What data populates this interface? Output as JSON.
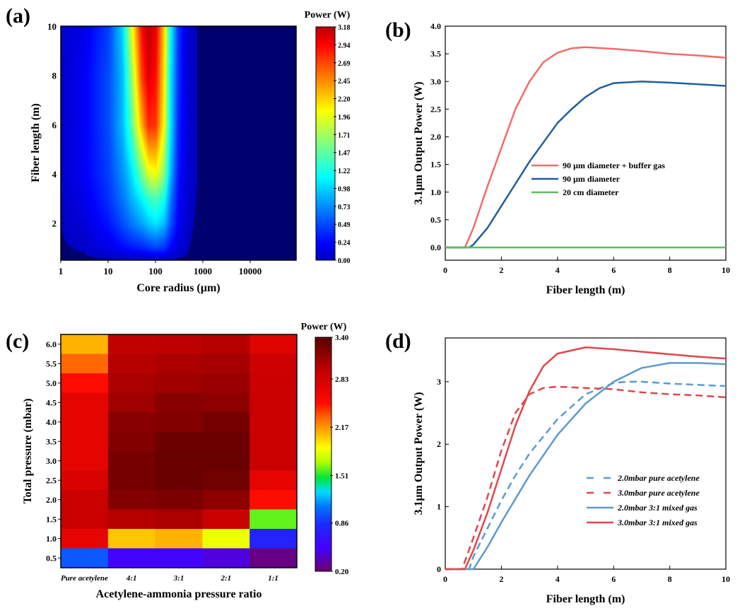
{
  "chart_data": [
    {
      "panel": "(a)",
      "type": "heatmap",
      "xlabel": "Core radius (µm)",
      "ylabel": "Fiber length (m)",
      "xscale": "log",
      "xlim": [
        1,
        93000
      ],
      "ylim": [
        0.5,
        10
      ],
      "xticks": [
        "1",
        "10",
        "100",
        "1000",
        "10000"
      ],
      "yticks": [
        "2",
        "4",
        "6",
        "8",
        "10"
      ],
      "colorbar": {
        "title": "Power (W)",
        "ticks": [
          "0.00",
          "0.24",
          "0.49",
          "0.73",
          "0.98",
          "1.22",
          "1.47",
          "1.71",
          "1.96",
          "2.20",
          "2.45",
          "2.69",
          "2.94",
          "3.18"
        ],
        "range": [
          0,
          3.18
        ],
        "colormap": "jet"
      },
      "x": [
        1,
        3,
        10,
        20,
        30,
        50,
        70,
        100,
        150,
        200,
        300,
        500,
        1000,
        93000
      ],
      "y": [
        0.5,
        1,
        2,
        3,
        4,
        6,
        8,
        10
      ],
      "values": [
        [
          0,
          0,
          0,
          0,
          0,
          0,
          0,
          0,
          0,
          0,
          0,
          0,
          0,
          0
        ],
        [
          0.01,
          0.03,
          0.15,
          0.25,
          0.3,
          0.35,
          0.4,
          0.45,
          0.4,
          0.25,
          0.1,
          0.02,
          0,
          0
        ],
        [
          0.02,
          0.1,
          0.3,
          0.5,
          0.65,
          0.8,
          0.95,
          1.05,
          0.9,
          0.55,
          0.2,
          0.03,
          0,
          0
        ],
        [
          0.03,
          0.15,
          0.4,
          0.65,
          0.85,
          1.1,
          1.3,
          1.4,
          1.2,
          0.7,
          0.25,
          0.04,
          0,
          0
        ],
        [
          0.05,
          0.2,
          0.45,
          0.75,
          1.0,
          1.5,
          1.9,
          2.0,
          1.6,
          0.9,
          0.3,
          0.05,
          0,
          0
        ],
        [
          0.05,
          0.2,
          0.5,
          0.9,
          1.4,
          2.3,
          2.8,
          2.75,
          2.0,
          1.1,
          0.35,
          0.05,
          0,
          0
        ],
        [
          0.05,
          0.2,
          0.5,
          0.9,
          1.6,
          2.7,
          3.05,
          2.9,
          2.1,
          1.1,
          0.4,
          0.05,
          0,
          0
        ],
        [
          0.05,
          0.15,
          0.45,
          1.0,
          1.9,
          2.9,
          3.18,
          3.0,
          2.2,
          1.2,
          0.4,
          0.05,
          0,
          0
        ]
      ]
    },
    {
      "panel": "(b)",
      "type": "line",
      "xlabel": "Fiber length (m)",
      "ylabel": "3.1μm Output Power (W)",
      "xlim": [
        0,
        10
      ],
      "ylim": [
        -0.23,
        4.0
      ],
      "xticks": [
        "0",
        "2",
        "4",
        "6",
        "8",
        "10"
      ],
      "yticks": [
        "0.0",
        "0.5",
        "1.0",
        "1.5",
        "2.0",
        "2.5",
        "3.0",
        "3.5",
        "4.0"
      ],
      "legend": "center-right",
      "series": [
        {
          "name": "90 µm diameter + buffer gas",
          "color": "#f26b6b",
          "dash": false,
          "x": [
            0,
            0.7,
            1,
            1.5,
            2,
            2.5,
            3,
            3.5,
            4,
            4.5,
            5,
            6,
            7,
            8,
            9,
            10
          ],
          "y": [
            0,
            0,
            0.35,
            1.1,
            1.8,
            2.5,
            3.0,
            3.35,
            3.52,
            3.6,
            3.62,
            3.59,
            3.55,
            3.5,
            3.47,
            3.43
          ]
        },
        {
          "name": "90 µm diameter",
          "color": "#1f5f9e",
          "dash": false,
          "x": [
            0,
            0.85,
            1,
            1.5,
            2,
            2.5,
            3,
            3.5,
            4,
            4.5,
            5,
            5.5,
            6,
            7,
            8,
            9,
            10
          ],
          "y": [
            0,
            0,
            0.05,
            0.35,
            0.75,
            1.15,
            1.55,
            1.9,
            2.25,
            2.5,
            2.72,
            2.88,
            2.97,
            3.0,
            2.98,
            2.95,
            2.92
          ]
        },
        {
          "name": "20 cm diameter",
          "color": "#5cbf5c",
          "dash": false,
          "x": [
            0,
            10
          ],
          "y": [
            0,
            0
          ]
        }
      ]
    },
    {
      "panel": "(c)",
      "type": "heatmap",
      "xlabel": "Acetylene-ammonia pressure ratio",
      "ylabel": "Total pressure (mbar)",
      "categories": [
        "Pure acetylene",
        "4:1",
        "3:1",
        "2:1",
        "1:1"
      ],
      "rows": [
        "6.0",
        "5.5",
        "5.0",
        "4.5",
        "4.0",
        "3.5",
        "3.0",
        "2.5",
        "2.0",
        "1.5",
        "1.0",
        "0.5"
      ],
      "colorbar": {
        "title": "Power (W)",
        "ticks": [
          "0.20",
          "0.86",
          "1.51",
          "2.17",
          "2.83",
          "3.40"
        ],
        "range": [
          0.2,
          3.4
        ]
      },
      "values": [
        [
          2.1,
          2.95,
          2.97,
          3.0,
          2.75
        ],
        [
          2.3,
          3.0,
          3.05,
          3.07,
          2.88
        ],
        [
          2.5,
          3.05,
          3.1,
          3.12,
          2.9
        ],
        [
          2.7,
          3.1,
          3.2,
          3.18,
          2.92
        ],
        [
          2.7,
          3.2,
          3.22,
          3.28,
          2.92
        ],
        [
          2.7,
          3.23,
          3.32,
          3.32,
          2.92
        ],
        [
          2.7,
          3.28,
          3.34,
          3.34,
          2.92
        ],
        [
          2.8,
          3.28,
          3.34,
          3.3,
          2.7
        ],
        [
          2.92,
          3.22,
          3.25,
          3.18,
          2.5
        ],
        [
          2.92,
          3.0,
          3.05,
          2.92,
          1.6
        ],
        [
          2.7,
          2.05,
          2.1,
          1.85,
          0.8
        ],
        [
          1.0,
          0.55,
          0.55,
          0.45,
          0.25
        ]
      ]
    },
    {
      "panel": "(d)",
      "type": "line",
      "xlabel": "Fiber length (m)",
      "ylabel": "3.1μm Output Power (W)",
      "xlim": [
        0,
        10
      ],
      "ylim": [
        0,
        3.7
      ],
      "xticks": [
        "0",
        "2",
        "4",
        "6",
        "8",
        "10"
      ],
      "yticks": [
        "0",
        "1",
        "2",
        "3"
      ],
      "legend": "center-right",
      "series": [
        {
          "name": "2.0mbar pure acetylene",
          "color": "#5b9bd0",
          "dash": true,
          "x": [
            0,
            0.85,
            1,
            1.5,
            2,
            2.5,
            3,
            4,
            5,
            6,
            6.5,
            7,
            8,
            9,
            10
          ],
          "y": [
            0,
            0,
            0.2,
            0.65,
            1.1,
            1.5,
            1.85,
            2.4,
            2.8,
            2.98,
            3.0,
            3.0,
            2.97,
            2.95,
            2.93
          ]
        },
        {
          "name": "3.0mbar pure acetylene",
          "color": "#e0474c",
          "dash": true,
          "x": [
            0,
            0.6,
            1,
            1.5,
            2,
            2.5,
            3,
            3.5,
            4,
            5,
            6,
            7,
            8,
            9,
            10
          ],
          "y": [
            0,
            0,
            0.5,
            1.15,
            1.9,
            2.5,
            2.8,
            2.9,
            2.92,
            2.9,
            2.88,
            2.83,
            2.8,
            2.78,
            2.75
          ]
        },
        {
          "name": "2.0mbar 3:1 mixed gas",
          "color": "#5b9bd0",
          "dash": false,
          "x": [
            0,
            1,
            1.5,
            2,
            3,
            4,
            5,
            6,
            7,
            8,
            9,
            10
          ],
          "y": [
            0,
            0,
            0.35,
            0.75,
            1.5,
            2.15,
            2.65,
            3.0,
            3.22,
            3.3,
            3.3,
            3.28
          ]
        },
        {
          "name": "3.0mbar 3:1 mixed gas",
          "color": "#e0474c",
          "dash": false,
          "x": [
            0,
            0.7,
            1,
            1.5,
            2,
            2.5,
            3,
            3.5,
            4,
            5,
            6,
            7,
            8,
            9,
            10
          ],
          "y": [
            0,
            0,
            0.3,
            0.9,
            1.6,
            2.3,
            2.85,
            3.25,
            3.45,
            3.55,
            3.52,
            3.48,
            3.44,
            3.4,
            3.37
          ]
        }
      ]
    }
  ]
}
